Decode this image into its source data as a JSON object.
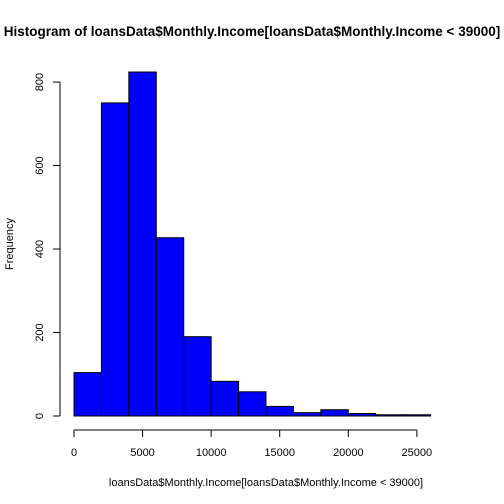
{
  "chart_data": {
    "type": "bar",
    "title": "Histogram of loansData$Monthly.Income[loansData$Monthly.Income < 39000]",
    "xlabel": "loansData$Monthly.Income[loansData$Monthly.Income < 39000]",
    "ylabel": "Frequency",
    "bin_edges": [
      0,
      2000,
      4000,
      6000,
      8000,
      10000,
      12000,
      14000,
      16000,
      18000,
      20000,
      22000,
      24000,
      26000
    ],
    "values": [
      104,
      750,
      824,
      427,
      190,
      83,
      58,
      23,
      8,
      15,
      6,
      3,
      3
    ],
    "xlim": [
      0,
      28000
    ],
    "ylim": [
      0,
      860
    ],
    "x_ticks": [
      0,
      5000,
      10000,
      15000,
      20000,
      25000
    ],
    "x_tick_labels": [
      "0",
      "5000",
      "10000",
      "15000",
      "20000",
      "25000"
    ],
    "y_ticks": [
      0,
      200,
      400,
      600,
      800
    ],
    "y_tick_labels": [
      "0",
      "200",
      "400",
      "600",
      "800"
    ],
    "bar_color": "#0000ff",
    "bar_border_color": "#000000",
    "grid": false,
    "legend": "none"
  }
}
